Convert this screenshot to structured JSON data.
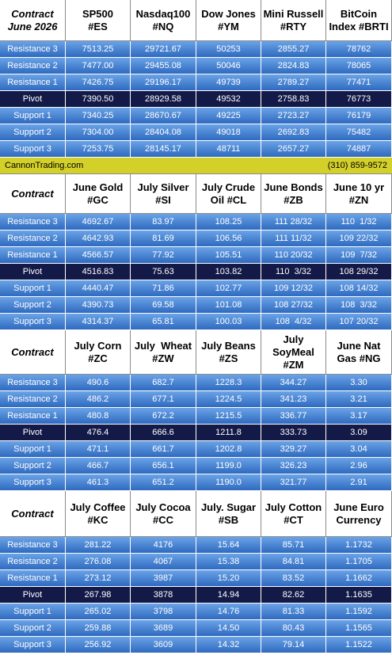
{
  "sections": [
    {
      "header": [
        [
          "Contract",
          "June 2026"
        ],
        [
          "SP500",
          "#ES"
        ],
        [
          "Nasdaq100",
          "#NQ"
        ],
        [
          "Dow Jones",
          "#YM"
        ],
        [
          "Mini Russell",
          "#RTY"
        ],
        [
          "BitCoin",
          "Index #BRTI"
        ]
      ],
      "rows": [
        [
          "Resistance 3",
          "7513.25",
          "29721.67",
          "50253",
          "2855.27",
          "78762"
        ],
        [
          "Resistance 2",
          "7477.00",
          "29455.08",
          "50046",
          "2824.83",
          "78065"
        ],
        [
          "Resistance 1",
          "7426.75",
          "29196.17",
          "49739",
          "2789.27",
          "77471"
        ],
        [
          "Pivot",
          "7390.50",
          "28929.58",
          "49532",
          "2758.83",
          "76773"
        ],
        [
          "Support 1",
          "7340.25",
          "28670.67",
          "49225",
          "2723.27",
          "76179"
        ],
        [
          "Support 2",
          "7304.00",
          "28404.08",
          "49018",
          "2692.83",
          "75482"
        ],
        [
          "Support 3",
          "7253.75",
          "28145.17",
          "48711",
          "2657.27",
          "74887"
        ]
      ]
    },
    {
      "header": [
        [
          "Contract"
        ],
        [
          "June Gold",
          "#GC"
        ],
        [
          "July Silver",
          "#SI"
        ],
        [
          "July Crude",
          "Oil #CL"
        ],
        [
          "June Bonds",
          "#ZB"
        ],
        [
          "June 10 yr",
          "#ZN"
        ]
      ],
      "rows": [
        [
          "Resistance 3",
          "4692.67",
          "83.97",
          "108.25",
          "111 28/32",
          "110  1/32"
        ],
        [
          "Resistance 2",
          "4642.93",
          "81.69",
          "106.56",
          "111 11/32",
          "109 22/32"
        ],
        [
          "Resistance 1",
          "4566.57",
          "77.92",
          "105.51",
          "110 20/32",
          "109  7/32"
        ],
        [
          "Pivot",
          "4516.83",
          "75.63",
          "103.82",
          "110  3/32",
          "108 29/32"
        ],
        [
          "Support 1",
          "4440.47",
          "71.86",
          "102.77",
          "109 12/32",
          "108 14/32"
        ],
        [
          "Support 2",
          "4390.73",
          "69.58",
          "101.08",
          "108 27/32",
          "108  3/32"
        ],
        [
          "Support 3",
          "4314.37",
          "65.81",
          "100.03",
          "108  4/32",
          "107 20/32"
        ]
      ]
    },
    {
      "header": [
        [
          "Contract"
        ],
        [
          "July Corn",
          "#ZC"
        ],
        [
          "July  Wheat",
          "#ZW"
        ],
        [
          "July Beans",
          "#ZS"
        ],
        [
          "July",
          "SoyMeal",
          "#ZM"
        ],
        [
          "June Nat",
          "Gas #NG"
        ]
      ],
      "rows": [
        [
          "Resistance 3",
          "490.6",
          "682.7",
          "1228.3",
          "344.27",
          "3.30"
        ],
        [
          "Resistance 2",
          "486.2",
          "677.1",
          "1224.5",
          "341.23",
          "3.21"
        ],
        [
          "Resistance 1",
          "480.8",
          "672.2",
          "1215.5",
          "336.77",
          "3.17"
        ],
        [
          "Pivot",
          "476.4",
          "666.6",
          "1211.8",
          "333.73",
          "3.09"
        ],
        [
          "Support 1",
          "471.1",
          "661.7",
          "1202.8",
          "329.27",
          "3.04"
        ],
        [
          "Support 2",
          "466.7",
          "656.1",
          "1199.0",
          "326.23",
          "2.96"
        ],
        [
          "Support 3",
          "461.3",
          "651.2",
          "1190.0",
          "321.77",
          "2.91"
        ]
      ]
    },
    {
      "header": [
        [
          "Contract"
        ],
        [
          "July Coffee",
          "#KC"
        ],
        [
          "July Cocoa",
          "#CC"
        ],
        [
          "July. Sugar",
          "#SB"
        ],
        [
          "July Cotton",
          "#CT"
        ],
        [
          "June Euro",
          "Currency"
        ]
      ],
      "rows": [
        [
          "Resistance 3",
          "281.22",
          "4176",
          "15.64",
          "85.71",
          "1.1732"
        ],
        [
          "Resistance 2",
          "276.08",
          "4067",
          "15.38",
          "84.81",
          "1.1705"
        ],
        [
          "Resistance 1",
          "273.12",
          "3987",
          "15.20",
          "83.52",
          "1.1662"
        ],
        [
          "Pivot",
          "267.98",
          "3878",
          "14.94",
          "82.62",
          "1.1635"
        ],
        [
          "Support 1",
          "265.02",
          "3798",
          "14.76",
          "81.33",
          "1.1592"
        ],
        [
          "Support 2",
          "259.88",
          "3689",
          "14.50",
          "80.43",
          "1.1565"
        ],
        [
          "Support 3",
          "256.92",
          "3609",
          "14.32",
          "79.14",
          "1.1522"
        ]
      ]
    }
  ],
  "banner": {
    "left": "CannonTrading.com",
    "right": "(310) 859-9572"
  }
}
